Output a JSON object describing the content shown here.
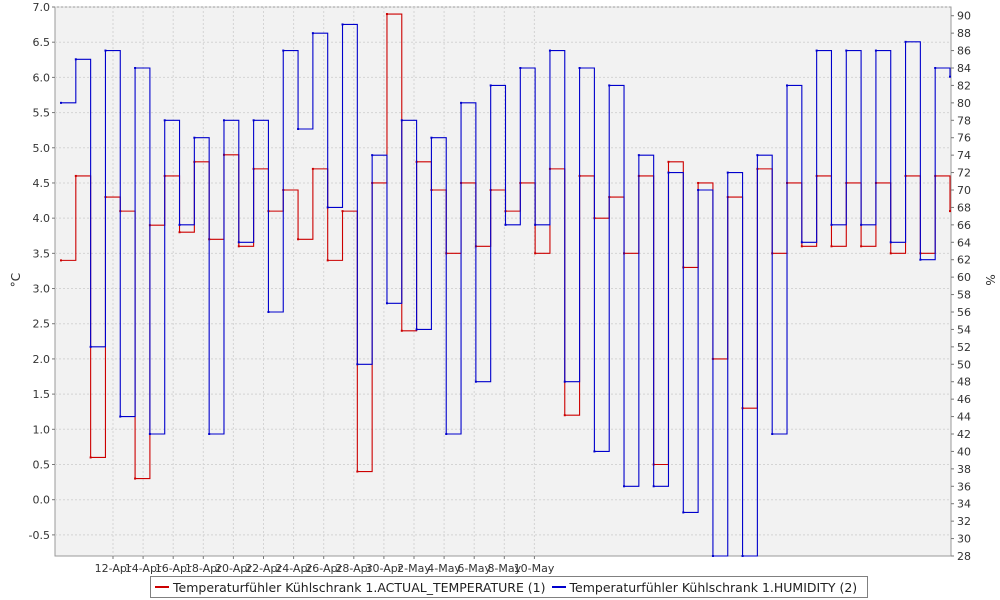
{
  "chart_data": {
    "type": "line",
    "title": "",
    "x_labels": [
      "12-Apr",
      "14-Apr",
      "16-Apr",
      "18-Apr",
      "20-Apr",
      "22-Apr",
      "24-Apr",
      "26-Apr",
      "28-Apr",
      "30-Apr",
      "2-May",
      "4-May",
      "6-May",
      "8-May",
      "10-May"
    ],
    "xlabel": "",
    "ylabel_left": "°C",
    "ylabel_right": "%",
    "ylim_left": [
      -0.8,
      7.0
    ],
    "ylim_right": [
      28,
      91
    ],
    "y_ticks_left": [
      "-0.5",
      "0.0",
      "0.5",
      "1.0",
      "1.5",
      "2.0",
      "2.5",
      "3.0",
      "3.5",
      "4.0",
      "4.5",
      "5.0",
      "5.5",
      "6.0",
      "6.5",
      "7.0"
    ],
    "y_ticks_right": [
      "28",
      "30",
      "32",
      "34",
      "36",
      "38",
      "40",
      "42",
      "44",
      "46",
      "48",
      "50",
      "52",
      "54",
      "56",
      "58",
      "60",
      "62",
      "64",
      "66",
      "68",
      "70",
      "72",
      "74",
      "76",
      "78",
      "80",
      "82",
      "84",
      "86",
      "88",
      "90"
    ],
    "grid": true,
    "legend_position": "bottom",
    "x_start_label": "10-Apr",
    "series": [
      {
        "name": "Temperaturfühler Kühlschrank 1.ACTUAL_TEMPERATURE (1)",
        "axis": "left",
        "color": "#cc0000",
        "x": [
          "10-Apr",
          "10-Apr 12:00",
          "11-Apr",
          "11-Apr 12:00",
          "12-Apr",
          "12-Apr 12:00",
          "13-Apr",
          "13-Apr 12:00",
          "14-Apr",
          "14-Apr 12:00",
          "15-Apr",
          "15-Apr 12:00",
          "16-Apr",
          "16-Apr 12:00",
          "17-Apr",
          "17-Apr 12:00",
          "18-Apr",
          "18-Apr 12:00",
          "19-Apr",
          "19-Apr 12:00",
          "20-Apr",
          "20-Apr 12:00",
          "21-Apr",
          "21-Apr 12:00",
          "22-Apr",
          "22-Apr 12:00",
          "23-Apr",
          "23-Apr 12:00",
          "24-Apr",
          "24-Apr 12:00",
          "25-Apr",
          "25-Apr 12:00",
          "26-Apr",
          "26-Apr 12:00",
          "27-Apr",
          "27-Apr 12:00",
          "28-Apr",
          "28-Apr 12:00",
          "29-Apr",
          "29-Apr 12:00",
          "30-Apr",
          "30-Apr 12:00",
          "1-May",
          "1-May 12:00",
          "2-May",
          "2-May 12:00",
          "3-May",
          "3-May 12:00",
          "4-May",
          "4-May 12:00",
          "5-May",
          "5-May 12:00",
          "6-May",
          "6-May 12:00",
          "7-May",
          "7-May 12:00",
          "8-May",
          "8-May 12:00",
          "9-May",
          "9-May 12:00",
          "10-May"
        ],
        "values": [
          3.4,
          4.6,
          0.6,
          4.3,
          4.1,
          0.3,
          3.9,
          4.6,
          3.8,
          4.8,
          3.7,
          4.9,
          3.6,
          4.7,
          4.1,
          4.4,
          3.7,
          4.7,
          3.4,
          4.1,
          0.4,
          4.5,
          6.9,
          2.4,
          4.8,
          4.4,
          3.5,
          4.5,
          3.6,
          4.4,
          4.1,
          4.5,
          3.5,
          4.7,
          1.2,
          4.6,
          4.0,
          4.3,
          3.5,
          4.6,
          0.5,
          4.8,
          3.3,
          4.5,
          2.0,
          4.3,
          1.3,
          4.7,
          3.5,
          4.5,
          3.6,
          4.6,
          3.6,
          4.5,
          3.6,
          4.5,
          3.5,
          4.6,
          3.5,
          4.6,
          4.1
        ]
      },
      {
        "name": "Temperaturfühler Kühlschrank 1.HUMIDITY (2)",
        "axis": "right",
        "color": "#0000cc",
        "x": [
          "10-Apr",
          "10-Apr 12:00",
          "11-Apr",
          "11-Apr 12:00",
          "12-Apr",
          "12-Apr 12:00",
          "13-Apr",
          "13-Apr 12:00",
          "14-Apr",
          "14-Apr 12:00",
          "15-Apr",
          "15-Apr 12:00",
          "16-Apr",
          "16-Apr 12:00",
          "17-Apr",
          "17-Apr 12:00",
          "18-Apr",
          "18-Apr 12:00",
          "19-Apr",
          "19-Apr 12:00",
          "20-Apr",
          "20-Apr 12:00",
          "21-Apr",
          "21-Apr 12:00",
          "22-Apr",
          "22-Apr 12:00",
          "23-Apr",
          "23-Apr 12:00",
          "24-Apr",
          "24-Apr 12:00",
          "25-Apr",
          "25-Apr 12:00",
          "26-Apr",
          "26-Apr 12:00",
          "27-Apr",
          "27-Apr 12:00",
          "28-Apr",
          "28-Apr 12:00",
          "29-Apr",
          "29-Apr 12:00",
          "30-Apr",
          "30-Apr 12:00",
          "1-May",
          "1-May 12:00",
          "2-May",
          "2-May 12:00",
          "3-May",
          "3-May 12:00",
          "4-May",
          "4-May 12:00",
          "5-May",
          "5-May 12:00",
          "6-May",
          "6-May 12:00",
          "7-May",
          "7-May 12:00",
          "8-May",
          "8-May 12:00",
          "9-May",
          "9-May 12:00",
          "10-May"
        ],
        "values": [
          80,
          85,
          52,
          86,
          44,
          84,
          42,
          78,
          66,
          76,
          42,
          78,
          64,
          78,
          56,
          86,
          77,
          88,
          68,
          89,
          50,
          74,
          57,
          78,
          54,
          76,
          42,
          80,
          48,
          82,
          66,
          84,
          66,
          86,
          48,
          84,
          40,
          82,
          36,
          74,
          36,
          72,
          33,
          70,
          28,
          72,
          28,
          74,
          42,
          82,
          64,
          86,
          66,
          86,
          66,
          86,
          64,
          87,
          62,
          84,
          83
        ]
      }
    ]
  }
}
